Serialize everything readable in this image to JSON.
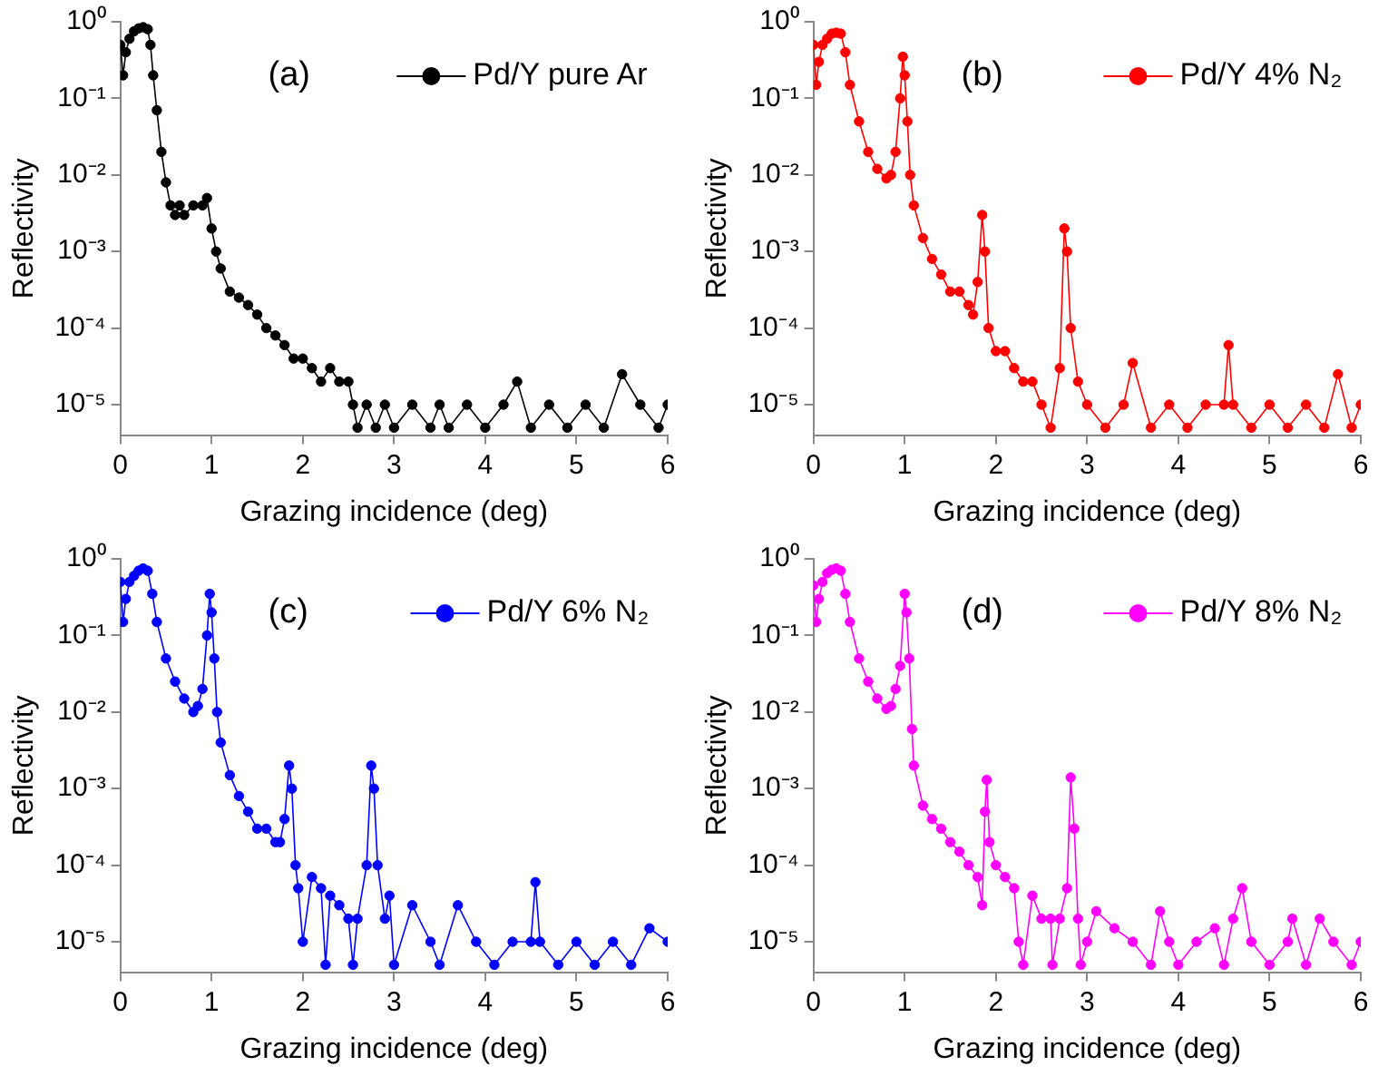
{
  "chart_data": [
    {
      "type": "line",
      "xlabel": "Grazing incidence (deg)",
      "ylabel": "Reflectivity",
      "annotations": [
        "(a)"
      ],
      "log": "y",
      "xlim": [
        0,
        6
      ],
      "ylim": [
        4e-06,
        1
      ],
      "xticks": [
        0,
        1,
        2,
        3,
        4,
        5,
        6
      ],
      "yticks": [
        {
          "value": 1e-05,
          "label": "10⁻⁵"
        },
        {
          "value": 0.0001,
          "label": "10⁻⁴"
        },
        {
          "value": 0.001,
          "label": "10⁻³"
        },
        {
          "value": 0.01,
          "label": "10⁻²"
        },
        {
          "value": 0.1,
          "label": "10⁻¹"
        },
        {
          "value": 1,
          "label": "10⁰"
        }
      ],
      "grid": false,
      "legend": "top right",
      "marker": "circle",
      "line_style": "solid",
      "series": [
        {
          "name": "Pd/Y pure Ar",
          "color": "#000000",
          "x": [
            0,
            0.03,
            0.06,
            0.1,
            0.15,
            0.2,
            0.25,
            0.3,
            0.33,
            0.36,
            0.4,
            0.45,
            0.5,
            0.55,
            0.6,
            0.65,
            0.7,
            0.8,
            0.9,
            0.95,
            1.0,
            1.05,
            1.1,
            1.2,
            1.3,
            1.4,
            1.5,
            1.6,
            1.7,
            1.8,
            1.9,
            2.0,
            2.1,
            2.2,
            2.3,
            2.4,
            2.5,
            2.55,
            2.6,
            2.7,
            2.8,
            2.9,
            3.0,
            3.2,
            3.4,
            3.5,
            3.6,
            3.8,
            4.0,
            4.2,
            4.35,
            4.5,
            4.7,
            4.9,
            5.1,
            5.3,
            5.5,
            5.7,
            5.9,
            6.0
          ],
          "values": [
            0.5,
            0.2,
            0.4,
            0.6,
            0.75,
            0.82,
            0.85,
            0.8,
            0.5,
            0.2,
            0.07,
            0.02,
            0.008,
            0.004,
            0.003,
            0.004,
            0.003,
            0.004,
            0.004,
            0.005,
            0.002,
            0.001,
            0.0006,
            0.0003,
            0.00025,
            0.0002,
            0.00015,
            0.0001,
            8e-05,
            6e-05,
            4e-05,
            4e-05,
            3e-05,
            2e-05,
            3e-05,
            2e-05,
            2e-05,
            1e-05,
            5e-06,
            1e-05,
            5e-06,
            1e-05,
            5e-06,
            1e-05,
            5e-06,
            1e-05,
            5e-06,
            1e-05,
            5e-06,
            1e-05,
            2e-05,
            5e-06,
            1e-05,
            5e-06,
            1e-05,
            5e-06,
            2.5e-05,
            1e-05,
            5e-06,
            1e-05
          ]
        }
      ]
    },
    {
      "type": "line",
      "xlabel": "Grazing incidence (deg)",
      "ylabel": "Reflectivity",
      "annotations": [
        "(b)"
      ],
      "log": "y",
      "xlim": [
        0,
        6
      ],
      "ylim": [
        4e-06,
        1
      ],
      "xticks": [
        0,
        1,
        2,
        3,
        4,
        5,
        6
      ],
      "yticks": [
        {
          "value": 1e-05,
          "label": "10⁻⁵"
        },
        {
          "value": 0.0001,
          "label": "10⁻⁴"
        },
        {
          "value": 0.001,
          "label": "10⁻³"
        },
        {
          "value": 0.01,
          "label": "10⁻²"
        },
        {
          "value": 0.1,
          "label": "10⁻¹"
        },
        {
          "value": 1,
          "label": "10⁰"
        }
      ],
      "grid": false,
      "legend": "top right",
      "marker": "circle",
      "line_style": "solid",
      "series": [
        {
          "name": "Pd/Y 4% N₂",
          "color": "#ff0000",
          "x": [
            0,
            0.03,
            0.06,
            0.1,
            0.15,
            0.2,
            0.25,
            0.3,
            0.35,
            0.4,
            0.5,
            0.6,
            0.7,
            0.8,
            0.85,
            0.9,
            0.95,
            0.98,
            1.0,
            1.03,
            1.06,
            1.1,
            1.2,
            1.3,
            1.4,
            1.5,
            1.6,
            1.7,
            1.75,
            1.8,
            1.85,
            1.88,
            1.92,
            2.0,
            2.1,
            2.2,
            2.3,
            2.4,
            2.5,
            2.6,
            2.7,
            2.75,
            2.78,
            2.82,
            2.9,
            3.0,
            3.2,
            3.4,
            3.5,
            3.7,
            3.9,
            4.1,
            4.3,
            4.5,
            4.55,
            4.6,
            4.8,
            5.0,
            5.2,
            5.4,
            5.6,
            5.75,
            5.9,
            6.0
          ],
          "values": [
            0.5,
            0.15,
            0.3,
            0.5,
            0.6,
            0.7,
            0.72,
            0.7,
            0.4,
            0.15,
            0.05,
            0.02,
            0.012,
            0.009,
            0.01,
            0.02,
            0.1,
            0.35,
            0.2,
            0.05,
            0.01,
            0.004,
            0.0015,
            0.0008,
            0.0005,
            0.0003,
            0.0003,
            0.0002,
            0.00015,
            0.0004,
            0.003,
            0.001,
            0.0001,
            5e-05,
            5e-05,
            3e-05,
            2e-05,
            2e-05,
            1e-05,
            5e-06,
            3e-05,
            0.002,
            0.001,
            0.0001,
            2e-05,
            1e-05,
            5e-06,
            1e-05,
            3.5e-05,
            5e-06,
            1e-05,
            5e-06,
            1e-05,
            1e-05,
            6e-05,
            1e-05,
            5e-06,
            1e-05,
            5e-06,
            1e-05,
            5e-06,
            2.5e-05,
            5e-06,
            1e-05
          ]
        }
      ]
    },
    {
      "type": "line",
      "xlabel": "Grazing incidence (deg)",
      "ylabel": "Reflectivity",
      "annotations": [
        "(c)"
      ],
      "log": "y",
      "xlim": [
        0,
        6
      ],
      "ylim": [
        4e-06,
        1
      ],
      "xticks": [
        0,
        1,
        2,
        3,
        4,
        5,
        6
      ],
      "yticks": [
        {
          "value": 1e-05,
          "label": "10⁻⁵"
        },
        {
          "value": 0.0001,
          "label": "10⁻⁴"
        },
        {
          "value": 0.001,
          "label": "10⁻³"
        },
        {
          "value": 0.01,
          "label": "10⁻²"
        },
        {
          "value": 0.1,
          "label": "10⁻¹"
        },
        {
          "value": 1,
          "label": "10⁰"
        }
      ],
      "grid": false,
      "legend": "top right",
      "marker": "circle",
      "line_style": "solid",
      "series": [
        {
          "name": "Pd/Y 6% N₂",
          "color": "#0000ff",
          "x": [
            0,
            0.03,
            0.06,
            0.1,
            0.15,
            0.2,
            0.25,
            0.3,
            0.35,
            0.4,
            0.5,
            0.6,
            0.7,
            0.8,
            0.85,
            0.9,
            0.95,
            0.98,
            1.0,
            1.03,
            1.06,
            1.1,
            1.2,
            1.3,
            1.4,
            1.5,
            1.6,
            1.7,
            1.75,
            1.8,
            1.85,
            1.88,
            1.92,
            1.95,
            2.0,
            2.1,
            2.2,
            2.25,
            2.3,
            2.4,
            2.5,
            2.55,
            2.6,
            2.7,
            2.75,
            2.78,
            2.82,
            2.9,
            2.95,
            3.0,
            3.2,
            3.4,
            3.5,
            3.7,
            3.9,
            4.1,
            4.3,
            4.5,
            4.55,
            4.6,
            4.8,
            5.0,
            5.2,
            5.4,
            5.6,
            5.8,
            6.0
          ],
          "values": [
            0.5,
            0.15,
            0.3,
            0.5,
            0.6,
            0.7,
            0.75,
            0.7,
            0.35,
            0.15,
            0.05,
            0.025,
            0.015,
            0.01,
            0.012,
            0.02,
            0.1,
            0.35,
            0.2,
            0.05,
            0.01,
            0.004,
            0.0015,
            0.0008,
            0.0005,
            0.0003,
            0.0003,
            0.0002,
            0.0002,
            0.0004,
            0.002,
            0.001,
            0.0001,
            5e-05,
            1e-05,
            7e-05,
            5e-05,
            5e-06,
            4e-05,
            3e-05,
            2e-05,
            5e-06,
            2e-05,
            0.0001,
            0.002,
            0.001,
            0.0001,
            2e-05,
            4e-05,
            5e-06,
            3e-05,
            1e-05,
            5e-06,
            3e-05,
            1e-05,
            5e-06,
            1e-05,
            1e-05,
            6e-05,
            1e-05,
            5e-06,
            1e-05,
            5e-06,
            1e-05,
            5e-06,
            1.5e-05,
            1e-05
          ]
        }
      ]
    },
    {
      "type": "line",
      "xlabel": "Grazing incidence (deg)",
      "ylabel": "Reflectivity",
      "annotations": [
        "(d)"
      ],
      "log": "y",
      "xlim": [
        0,
        6
      ],
      "ylim": [
        4e-06,
        1
      ],
      "xticks": [
        0,
        1,
        2,
        3,
        4,
        5,
        6
      ],
      "yticks": [
        {
          "value": 1e-05,
          "label": "10⁻⁵"
        },
        {
          "value": 0.0001,
          "label": "10⁻⁴"
        },
        {
          "value": 0.001,
          "label": "10⁻³"
        },
        {
          "value": 0.01,
          "label": "10⁻²"
        },
        {
          "value": 0.1,
          "label": "10⁻¹"
        },
        {
          "value": 1,
          "label": "10⁰"
        }
      ],
      "grid": false,
      "legend": "top right",
      "marker": "circle",
      "line_style": "solid",
      "series": [
        {
          "name": "Pd/Y 8% N₂",
          "color": "#ff00ff",
          "x": [
            0,
            0.03,
            0.06,
            0.1,
            0.15,
            0.2,
            0.25,
            0.3,
            0.35,
            0.4,
            0.5,
            0.6,
            0.7,
            0.8,
            0.85,
            0.9,
            0.95,
            1.0,
            1.02,
            1.05,
            1.08,
            1.1,
            1.2,
            1.3,
            1.4,
            1.5,
            1.6,
            1.7,
            1.8,
            1.85,
            1.88,
            1.9,
            1.93,
            2.0,
            2.1,
            2.2,
            2.25,
            2.3,
            2.4,
            2.5,
            2.6,
            2.62,
            2.7,
            2.78,
            2.82,
            2.86,
            2.9,
            2.93,
            3.0,
            3.1,
            3.3,
            3.5,
            3.7,
            3.8,
            3.9,
            4.0,
            4.2,
            4.4,
            4.5,
            4.6,
            4.7,
            4.8,
            5.0,
            5.2,
            5.25,
            5.4,
            5.55,
            5.7,
            5.9,
            6.0
          ],
          "values": [
            0.45,
            0.15,
            0.3,
            0.5,
            0.65,
            0.72,
            0.75,
            0.7,
            0.35,
            0.15,
            0.05,
            0.025,
            0.015,
            0.011,
            0.012,
            0.02,
            0.04,
            0.35,
            0.2,
            0.05,
            0.006,
            0.002,
            0.0006,
            0.0004,
            0.0003,
            0.0002,
            0.00015,
            0.0001,
            7e-05,
            3e-05,
            0.0005,
            0.0013,
            0.0002,
            0.0001,
            7e-05,
            5e-05,
            1e-05,
            5e-06,
            4e-05,
            2e-05,
            2e-05,
            5e-06,
            2e-05,
            5e-05,
            0.0014,
            0.0003,
            2e-05,
            5e-06,
            1e-05,
            2.5e-05,
            1.5e-05,
            1e-05,
            5e-06,
            2.5e-05,
            1e-05,
            5e-06,
            1e-05,
            1.5e-05,
            5e-06,
            2e-05,
            5e-05,
            1e-05,
            5e-06,
            1e-05,
            2e-05,
            5e-06,
            2e-05,
            1e-05,
            5e-06,
            1e-05
          ]
        }
      ]
    }
  ]
}
